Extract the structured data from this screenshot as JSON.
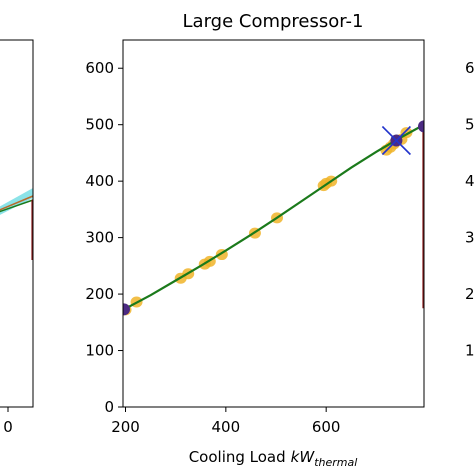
{
  "chart_data": [
    {
      "panel": "center",
      "type": "scatter",
      "title": "Large Compressor-1",
      "xlabel": "Cooling Load",
      "xlabel_unit": "kW",
      "xlabel_unit_sub": "thermal",
      "xlim": [
        195,
        795
      ],
      "ylim": [
        0,
        650
      ],
      "xticks": [
        200,
        400,
        600
      ],
      "yticks": [
        0,
        100,
        200,
        300,
        400,
        500,
        600
      ],
      "colors": {
        "points": "#f0b429",
        "fit_line": "#1b7a1b",
        "fit_band": "#7fe0e6",
        "endpoints": "#4b2a82",
        "cross": "#2233cc",
        "divider": "#8b1a1a"
      },
      "series": [
        {
          "kind": "measured",
          "x": [
            200,
            222,
            310,
            325,
            358,
            368,
            392,
            458,
            502,
            595,
            600,
            610,
            720,
            728,
            735,
            750,
            760
          ],
          "y": [
            172,
            186,
            228,
            236,
            253,
            258,
            270,
            308,
            335,
            392,
            396,
            400,
            455,
            460,
            466,
            474,
            486
          ]
        },
        {
          "kind": "fit",
          "x": [
            195,
            250,
            300,
            350,
            400,
            450,
            500,
            550,
            600,
            650,
            700,
            750,
            795
          ],
          "y": [
            172,
            198,
            224,
            250,
            277,
            305,
            334,
            364,
            394,
            424,
            452,
            478,
            500
          ]
        },
        {
          "kind": "endpoints",
          "x": [
            197,
            795
          ],
          "y": [
            173,
            497
          ]
        },
        {
          "kind": "cross",
          "x": [
            740
          ],
          "y": [
            472
          ]
        }
      ]
    },
    {
      "panel": "left",
      "type": "line",
      "xticks_visible": [
        "0"
      ]
    },
    {
      "panel": "right",
      "type": "line",
      "yticks_visible": [
        "6",
        "5",
        "4",
        "3",
        "2",
        "1"
      ]
    }
  ]
}
